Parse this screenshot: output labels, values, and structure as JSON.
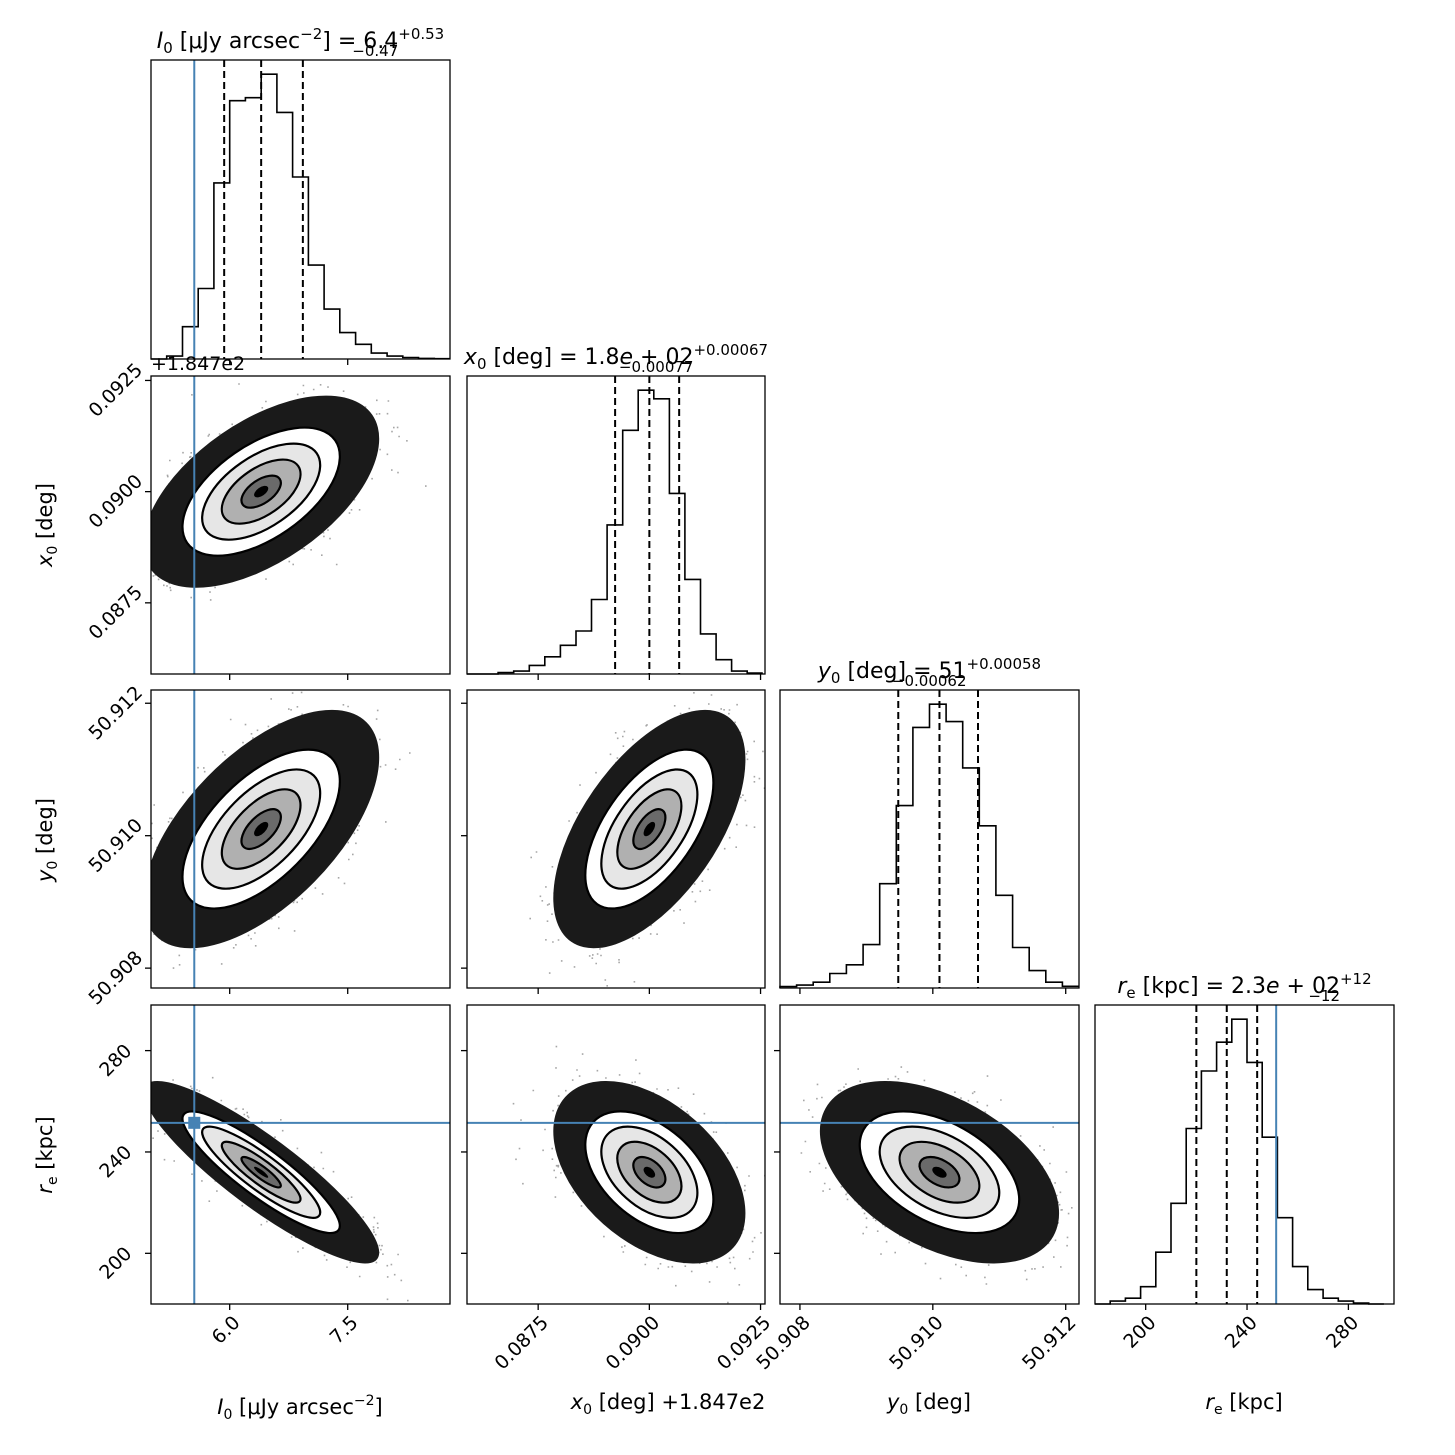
{
  "colors": {
    "truth": "#4682b4",
    "hist": "#000000",
    "contour_fill": "#ffffff"
  },
  "chart_data": [
    {
      "type": "histogram",
      "panel": "I0-marginal",
      "title": {
        "main": "I0 [μJy arcsec−2] = 6.4",
        "lhs_sym": "I",
        "lhs_sub": "0",
        "lhs_pre": " [μJy arcsec",
        "lhs_sup": "−2",
        "lhs_post": "] = 6.4",
        "err_plus": "+0.53",
        "err_minus": "−0.47"
      },
      "xlim": [
        5.0,
        8.8
      ],
      "bin_edges": [
        5.0,
        5.2,
        5.4,
        5.6,
        5.8,
        6.0,
        6.2,
        6.4,
        6.6,
        6.8,
        7.0,
        7.2,
        7.4,
        7.6,
        7.8,
        8.0,
        8.2,
        8.4,
        8.6,
        8.8
      ],
      "counts": [
        0.0,
        0.01,
        0.11,
        0.24,
        0.6,
        0.88,
        0.89,
        0.97,
        0.84,
        0.62,
        0.32,
        0.17,
        0.09,
        0.05,
        0.02,
        0.01,
        0.005,
        0.002,
        0.001
      ],
      "quantiles": [
        5.93,
        6.4,
        6.93
      ],
      "truth": 5.55,
      "offset_text": "+1.847e2"
    },
    {
      "type": "histogram",
      "panel": "x0-marginal",
      "title": {
        "main": "x0 [deg] = 1.8e+02",
        "lhs_sym": "x",
        "lhs_sub": "0",
        "lhs_post": " [deg] = 1.8",
        "lhs_e": "e",
        "lhs_exp": " + 02",
        "err_plus": "+0.00067",
        "err_minus": "−0.00077"
      },
      "xlim": [
        0.0859,
        0.0926
      ],
      "bin_edges": [
        0.0859,
        0.08625,
        0.0866,
        0.08695,
        0.0873,
        0.08765,
        0.088,
        0.08835,
        0.0887,
        0.08905,
        0.0894,
        0.08975,
        0.0901,
        0.09045,
        0.0908,
        0.09115,
        0.0915,
        0.09185,
        0.0922,
        0.09255
      ],
      "counts": [
        0.0,
        0.0,
        0.005,
        0.01,
        0.03,
        0.06,
        0.1,
        0.15,
        0.26,
        0.52,
        0.85,
        0.99,
        0.96,
        0.63,
        0.33,
        0.14,
        0.05,
        0.01,
        0.003
      ],
      "quantiles": [
        0.08923,
        0.09,
        0.09067
      ]
    },
    {
      "type": "histogram",
      "panel": "y0-marginal",
      "title": {
        "main": "y0 [deg] = 51",
        "lhs_sym": "y",
        "lhs_sub": "0",
        "lhs_post": " [deg] = 51",
        "err_plus": "+0.00058",
        "err_minus": "−0.00062"
      },
      "xlim": [
        50.9077,
        50.9122
      ],
      "bin_edges": [
        50.9077,
        50.90795,
        50.9082,
        50.90845,
        50.9087,
        50.90895,
        50.9092,
        50.90945,
        50.9097,
        50.90995,
        50.9102,
        50.91045,
        50.9107,
        50.91095,
        50.9112,
        50.91145,
        50.9117,
        50.91195,
        50.9122
      ],
      "counts": [
        0.005,
        0.01,
        0.02,
        0.05,
        0.08,
        0.15,
        0.36,
        0.63,
        0.9,
        0.98,
        0.92,
        0.76,
        0.56,
        0.32,
        0.14,
        0.06,
        0.02,
        0.006
      ],
      "quantiles": [
        50.90948,
        50.9101,
        50.91068
      ]
    },
    {
      "type": "histogram",
      "panel": "re-marginal",
      "title": {
        "main": "re [kpc] = 2.3e+02",
        "lhs_sym": "r",
        "lhs_sub": "e",
        "lhs_post": " [kpc] = 2.3",
        "lhs_e": "e",
        "lhs_exp": " + 02",
        "err_plus": "+12",
        "err_minus": "−12"
      },
      "xlim": [
        180,
        298
      ],
      "bin_edges": [
        180,
        186,
        192,
        198,
        204,
        210,
        216,
        222,
        228,
        234,
        240,
        246,
        252,
        258,
        264,
        270,
        276,
        282,
        288,
        294
      ],
      "counts": [
        0.0,
        0.01,
        0.02,
        0.06,
        0.18,
        0.35,
        0.61,
        0.81,
        0.91,
        0.99,
        0.84,
        0.58,
        0.3,
        0.13,
        0.05,
        0.02,
        0.01,
        0.003,
        0.0
      ],
      "quantiles": [
        220,
        232,
        244
      ],
      "truth": 251.5
    },
    {
      "type": "scatter-density",
      "panel": "I0-vs-x0",
      "xlim": [
        5.0,
        8.8
      ],
      "ylim": [
        0.0859,
        0.0926
      ],
      "mean": [
        6.4,
        0.09
      ],
      "sd": [
        0.5,
        0.00072
      ],
      "rho": 0.55,
      "truth": {
        "x": 5.55
      }
    },
    {
      "type": "scatter-density",
      "panel": "I0-vs-y0",
      "xlim": [
        5.0,
        8.8
      ],
      "ylim": [
        50.9077,
        50.9122
      ],
      "mean": [
        6.4,
        50.9101
      ],
      "sd": [
        0.5,
        0.0006
      ],
      "rho": 0.6,
      "truth": {
        "x": 5.55
      }
    },
    {
      "type": "scatter-density",
      "panel": "x0-vs-y0",
      "xlim": [
        0.0859,
        0.0926
      ],
      "ylim": [
        50.9077,
        50.9122
      ],
      "mean": [
        0.09,
        50.9101
      ],
      "sd": [
        0.00072,
        0.0006
      ],
      "rho": 0.58
    },
    {
      "type": "scatter-density",
      "panel": "I0-vs-re",
      "xlim": [
        5.0,
        8.8
      ],
      "ylim": [
        180,
        298
      ],
      "mean": [
        6.4,
        232
      ],
      "sd": [
        0.5,
        12
      ],
      "rho": -0.88,
      "truth": {
        "x": 5.55,
        "y": 251.5
      }
    },
    {
      "type": "scatter-density",
      "panel": "x0-vs-re",
      "xlim": [
        0.0859,
        0.0926
      ],
      "ylim": [
        180,
        298
      ],
      "mean": [
        0.09,
        232
      ],
      "sd": [
        0.00072,
        12
      ],
      "rho": -0.45,
      "truth": {
        "y": 251.5
      }
    },
    {
      "type": "scatter-density",
      "panel": "y0-vs-re",
      "xlim": [
        50.9077,
        50.9122
      ],
      "ylim": [
        180,
        298
      ],
      "mean": [
        50.9101,
        232
      ],
      "sd": [
        0.0006,
        12
      ],
      "rho": -0.45,
      "truth": {
        "y": 251.5
      }
    }
  ],
  "axes": {
    "I0": {
      "ticks": [
        6.0,
        7.5
      ],
      "tick_labels": [
        "6.0",
        "7.5"
      ],
      "label_sym": "I",
      "label_sub": "0",
      "label_text": " [μJy arcsec",
      "label_sup": "−2",
      "label_post": "]"
    },
    "x0": {
      "ticks": [
        0.0875,
        0.09,
        0.0925
      ],
      "tick_labels": [
        "0.0875",
        "0.0900",
        "0.0925"
      ],
      "label_sym": "x",
      "label_sub": "0",
      "label_text": " [deg]",
      "offset_text": "+1.847e2"
    },
    "y0": {
      "ticks": [
        50.908,
        50.91,
        50.912
      ],
      "tick_labels": [
        "50.908",
        "50.910",
        "50.912"
      ],
      "label_sym": "y",
      "label_sub": "0",
      "label_text": " [deg]"
    },
    "re": {
      "ticks": [
        200,
        240,
        280
      ],
      "tick_labels": [
        "200",
        "240",
        "280"
      ],
      "label_sym": "r",
      "label_sub": "e",
      "label_text": " [kpc]"
    }
  }
}
